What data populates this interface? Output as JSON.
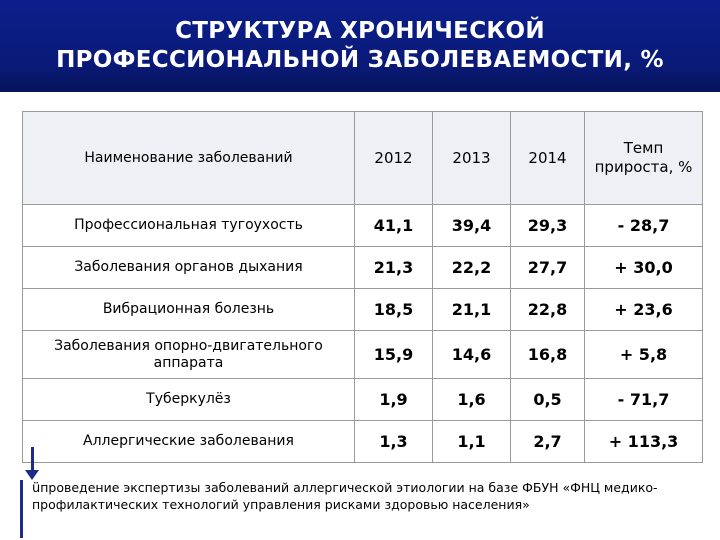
{
  "title": {
    "line1": "СТРУКТУРА ХРОНИЧЕСКОЙ",
    "line2": "ПРОФЕССИОНАЛЬНОЙ ЗАБОЛЕВАЕМОСТИ, %"
  },
  "table": {
    "headers": {
      "name": "Наименование заболеваний",
      "y2012": "2012",
      "y2013": "2013",
      "y2014": "2014",
      "rate": "Темп прироста, %"
    },
    "rows": [
      {
        "name": "Профессиональная тугоухость",
        "v2012": "41,1",
        "v2013": "39,4",
        "v2014": "29,3",
        "rate": "- 28,7"
      },
      {
        "name": "Заболевания органов дыхания",
        "v2012": "21,3",
        "v2013": "22,2",
        "v2014": "27,7",
        "rate": "+ 30,0"
      },
      {
        "name": "Вибрационная болезнь",
        "v2012": "18,5",
        "v2013": "21,1",
        "v2014": "22,8",
        "rate": "+ 23,6"
      },
      {
        "name": "Заболевания опорно-двигательного аппарата",
        "v2012": "15,9",
        "v2013": "14,6",
        "v2014": "16,8",
        "rate": "+ 5,8"
      },
      {
        "name": "Туберкулёз",
        "v2012": "1,9",
        "v2013": "1,6",
        "v2014": "0,5",
        "rate": "- 71,7"
      },
      {
        "name": "Аллергические заболевания",
        "v2012": "1,3",
        "v2013": "1,1",
        "v2014": "2,7",
        "rate": "+ 113,3"
      }
    ]
  },
  "footnote": {
    "bullet": "ü",
    "text": "проведение экспертизы заболеваний аллергической этиологии на базе ФБУН «ФНЦ медико-профилактических технологий управления рисками здоровью населения»"
  },
  "colors": {
    "title_bg": "#0a1a78",
    "title_text": "#ffffff",
    "accent": "#1c2a8a"
  },
  "icons": {
    "arrow": "down-arrow-icon",
    "bullet": "checkmark-bullet-icon"
  }
}
